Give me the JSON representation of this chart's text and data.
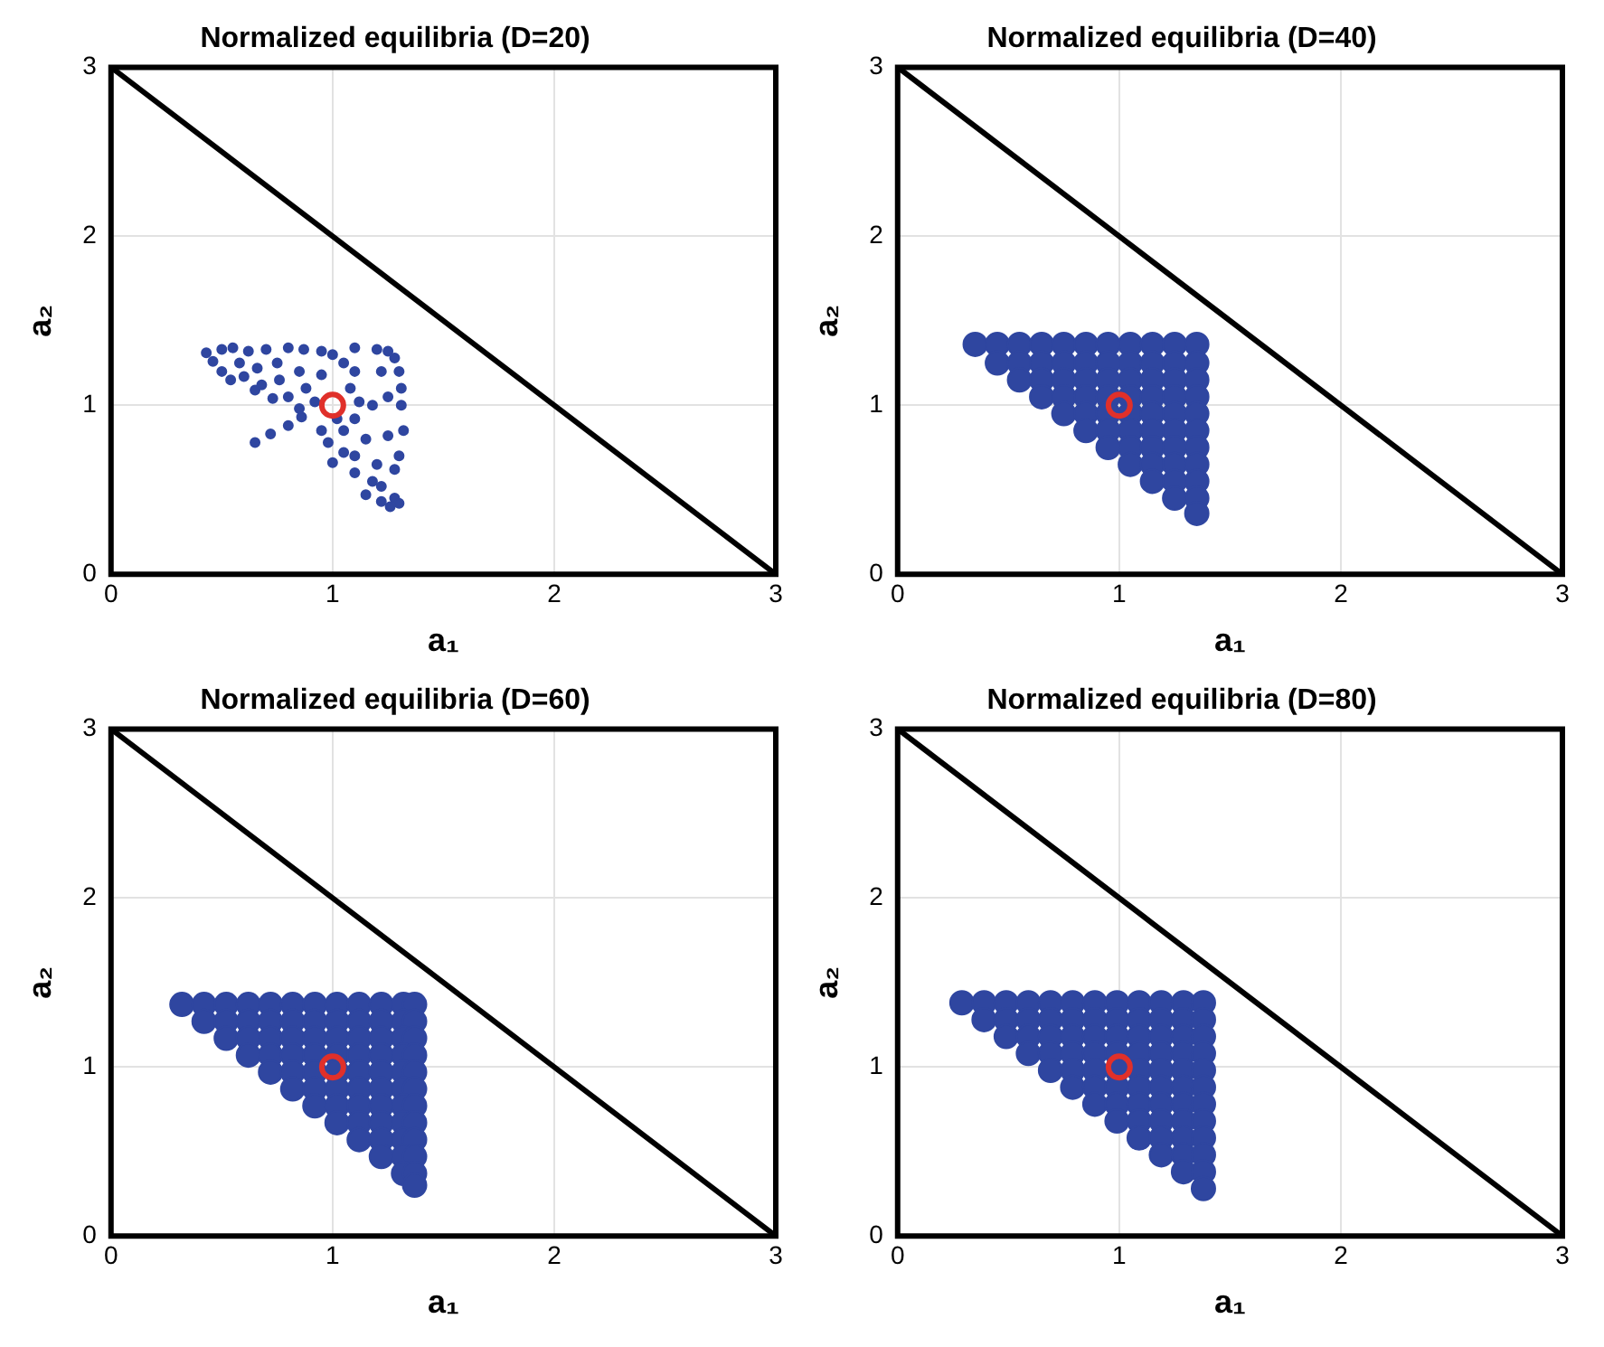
{
  "chart_data": [
    {
      "type": "scatter",
      "title": "Normalized equilibria (D=20)",
      "xlabel": "a₁",
      "ylabel": "a₂",
      "xlim": [
        0,
        3
      ],
      "ylim": [
        0,
        3
      ],
      "xticks": [
        0,
        1,
        2,
        3
      ],
      "yticks": [
        0,
        1,
        2,
        3
      ],
      "grid": true,
      "marker": "circle",
      "series": [
        {
          "type": "scatter",
          "color": "#2f46a0",
          "x": [
            0.43,
            0.5,
            0.55,
            0.46,
            0.5,
            0.54,
            0.62,
            0.58,
            0.6,
            0.65,
            0.7,
            0.66,
            0.68,
            0.73,
            0.8,
            0.75,
            0.76,
            0.8,
            0.85,
            0.87,
            0.85,
            0.88,
            0.92,
            0.65,
            0.72,
            0.8,
            0.86,
            0.95,
            1.0,
            0.95,
            1.05,
            1.1,
            1.08,
            1.12,
            1.02,
            0.95,
            0.98,
            1.05,
            1.1,
            1.1,
            1.2,
            1.25,
            1.28,
            1.3,
            1.31,
            1.31,
            1.22,
            1.25,
            1.18,
            1.32,
            1.25,
            1.15,
            1.05,
            1.0,
            1.1,
            1.2,
            1.28,
            1.3,
            1.1,
            1.18,
            1.22,
            1.28,
            1.3,
            1.22,
            1.15,
            1.26
          ],
          "values": [
            1.31,
            1.33,
            1.34,
            1.26,
            1.2,
            1.15,
            1.32,
            1.25,
            1.17,
            1.09,
            1.33,
            1.22,
            1.12,
            1.04,
            1.34,
            1.25,
            1.15,
            1.05,
            0.98,
            1.33,
            1.2,
            1.1,
            1.02,
            0.78,
            0.83,
            0.88,
            0.93,
            1.32,
            1.3,
            1.18,
            1.25,
            1.2,
            1.1,
            1.02,
            0.92,
            0.85,
            0.78,
            0.85,
            0.92,
            1.34,
            1.33,
            1.32,
            1.28,
            1.2,
            1.1,
            1.0,
            1.2,
            1.05,
            1.0,
            0.85,
            0.82,
            0.8,
            0.72,
            0.66,
            0.7,
            0.65,
            0.62,
            0.7,
            0.6,
            0.55,
            0.52,
            0.45,
            0.42,
            0.43,
            0.47,
            0.4
          ]
        },
        {
          "type": "scatter",
          "color": "#e0302a",
          "x": [
            1
          ],
          "values": [
            1
          ]
        },
        {
          "type": "line",
          "color": "#000000",
          "marker": "none",
          "x": [
            0,
            3
          ],
          "values": [
            3,
            0
          ]
        }
      ]
    },
    {
      "type": "scatter",
      "title": "Normalized equilibria (D=40)",
      "xlabel": "a₁",
      "ylabel": "a₂",
      "xlim": [
        0,
        3
      ],
      "ylim": [
        0,
        3
      ],
      "xticks": [
        0,
        1,
        2,
        3
      ],
      "yticks": [
        0,
        1,
        2,
        3
      ],
      "grid": true,
      "marker": "circle",
      "series": [
        {
          "type": "scatter",
          "color": "#2f46a0",
          "x": [
            0.35,
            0.45,
            0.55,
            0.65,
            0.75,
            0.85,
            0.95,
            1.05,
            1.15,
            1.25,
            1.35,
            0.45,
            0.55,
            0.65,
            0.75,
            0.85,
            0.95,
            1.05,
            1.15,
            1.25,
            1.35,
            0.55,
            0.65,
            0.75,
            0.85,
            0.95,
            1.05,
            1.15,
            1.25,
            1.35,
            0.65,
            0.75,
            0.85,
            0.95,
            1.05,
            1.15,
            1.25,
            1.35,
            0.75,
            0.85,
            0.95,
            1.05,
            1.15,
            1.25,
            1.35,
            0.85,
            0.95,
            1.05,
            1.15,
            1.25,
            1.35,
            0.95,
            1.05,
            1.15,
            1.25,
            1.35,
            1.05,
            1.15,
            1.25,
            1.35,
            1.15,
            1.25,
            1.35,
            1.25,
            1.35,
            1.35
          ],
          "values": [
            1.36,
            1.36,
            1.36,
            1.36,
            1.36,
            1.36,
            1.36,
            1.36,
            1.36,
            1.36,
            1.36,
            1.25,
            1.25,
            1.25,
            1.25,
            1.25,
            1.25,
            1.25,
            1.25,
            1.25,
            1.25,
            1.15,
            1.15,
            1.15,
            1.15,
            1.15,
            1.15,
            1.15,
            1.15,
            1.15,
            1.05,
            1.05,
            1.05,
            1.05,
            1.05,
            1.05,
            1.05,
            1.05,
            0.95,
            0.95,
            0.95,
            0.95,
            0.95,
            0.95,
            0.95,
            0.85,
            0.85,
            0.85,
            0.85,
            0.85,
            0.85,
            0.75,
            0.75,
            0.75,
            0.75,
            0.75,
            0.65,
            0.65,
            0.65,
            0.65,
            0.55,
            0.55,
            0.55,
            0.45,
            0.45,
            0.36
          ]
        },
        {
          "type": "scatter",
          "color": "#e0302a",
          "x": [
            1
          ],
          "values": [
            1
          ]
        },
        {
          "type": "line",
          "color": "#000000",
          "marker": "none",
          "x": [
            0,
            3
          ],
          "values": [
            3,
            0
          ]
        }
      ]
    },
    {
      "type": "scatter",
      "title": "Normalized equilibria (D=60)",
      "xlabel": "a₁",
      "ylabel": "a₂",
      "xlim": [
        0,
        3
      ],
      "ylim": [
        0,
        3
      ],
      "xticks": [
        0,
        1,
        2,
        3
      ],
      "yticks": [
        0,
        1,
        2,
        3
      ],
      "grid": true,
      "marker": "circle",
      "series": [
        {
          "type": "scatter",
          "color": "#2f46a0",
          "x": [
            0.32,
            0.42,
            0.52,
            0.62,
            0.72,
            0.82,
            0.92,
            1.02,
            1.12,
            1.22,
            1.32,
            1.37,
            0.42,
            0.52,
            0.62,
            0.72,
            0.82,
            0.92,
            1.02,
            1.12,
            1.22,
            1.32,
            1.37,
            0.52,
            0.62,
            0.72,
            0.82,
            0.92,
            1.02,
            1.12,
            1.22,
            1.32,
            1.37,
            0.62,
            0.72,
            0.82,
            0.92,
            1.02,
            1.12,
            1.22,
            1.32,
            1.37,
            0.72,
            0.82,
            0.92,
            1.02,
            1.12,
            1.22,
            1.32,
            1.37,
            0.82,
            0.92,
            1.02,
            1.12,
            1.22,
            1.32,
            1.37,
            0.92,
            1.02,
            1.12,
            1.22,
            1.32,
            1.37,
            1.02,
            1.12,
            1.22,
            1.32,
            1.37,
            1.12,
            1.22,
            1.32,
            1.37,
            1.22,
            1.32,
            1.37,
            1.32,
            1.37,
            1.37
          ],
          "values": [
            1.37,
            1.37,
            1.37,
            1.37,
            1.37,
            1.37,
            1.37,
            1.37,
            1.37,
            1.37,
            1.37,
            1.37,
            1.27,
            1.27,
            1.27,
            1.27,
            1.27,
            1.27,
            1.27,
            1.27,
            1.27,
            1.27,
            1.27,
            1.17,
            1.17,
            1.17,
            1.17,
            1.17,
            1.17,
            1.17,
            1.17,
            1.17,
            1.17,
            1.07,
            1.07,
            1.07,
            1.07,
            1.07,
            1.07,
            1.07,
            1.07,
            1.07,
            0.97,
            0.97,
            0.97,
            0.97,
            0.97,
            0.97,
            0.97,
            0.97,
            0.87,
            0.87,
            0.87,
            0.87,
            0.87,
            0.87,
            0.87,
            0.77,
            0.77,
            0.77,
            0.77,
            0.77,
            0.77,
            0.67,
            0.67,
            0.67,
            0.67,
            0.67,
            0.57,
            0.57,
            0.57,
            0.57,
            0.47,
            0.47,
            0.47,
            0.37,
            0.37,
            0.3
          ]
        },
        {
          "type": "scatter",
          "color": "#e0302a",
          "x": [
            1
          ],
          "values": [
            1
          ]
        },
        {
          "type": "line",
          "color": "#000000",
          "marker": "none",
          "x": [
            0,
            3
          ],
          "values": [
            3,
            0
          ]
        }
      ]
    },
    {
      "type": "scatter",
      "title": "Normalized equilibria (D=80)",
      "xlabel": "a₁",
      "ylabel": "a₂",
      "xlim": [
        0,
        3
      ],
      "ylim": [
        0,
        3
      ],
      "xticks": [
        0,
        1,
        2,
        3
      ],
      "yticks": [
        0,
        1,
        2,
        3
      ],
      "grid": true,
      "marker": "circle",
      "series": [
        {
          "type": "scatter",
          "color": "#2f46a0",
          "x": [
            0.29,
            0.39,
            0.49,
            0.59,
            0.69,
            0.79,
            0.89,
            0.99,
            1.09,
            1.19,
            1.29,
            1.38,
            0.39,
            0.49,
            0.59,
            0.69,
            0.79,
            0.89,
            0.99,
            1.09,
            1.19,
            1.29,
            1.38,
            0.49,
            0.59,
            0.69,
            0.79,
            0.89,
            0.99,
            1.09,
            1.19,
            1.29,
            1.38,
            0.59,
            0.69,
            0.79,
            0.89,
            0.99,
            1.09,
            1.19,
            1.29,
            1.38,
            0.69,
            0.79,
            0.89,
            0.99,
            1.09,
            1.19,
            1.29,
            1.38,
            0.79,
            0.89,
            0.99,
            1.09,
            1.19,
            1.29,
            1.38,
            0.89,
            0.99,
            1.09,
            1.19,
            1.29,
            1.38,
            0.99,
            1.09,
            1.19,
            1.29,
            1.38,
            1.09,
            1.19,
            1.29,
            1.38,
            1.19,
            1.29,
            1.38,
            1.29,
            1.38,
            1.38
          ],
          "values": [
            1.38,
            1.38,
            1.38,
            1.38,
            1.38,
            1.38,
            1.38,
            1.38,
            1.38,
            1.38,
            1.38,
            1.38,
            1.28,
            1.28,
            1.28,
            1.28,
            1.28,
            1.28,
            1.28,
            1.28,
            1.28,
            1.28,
            1.28,
            1.18,
            1.18,
            1.18,
            1.18,
            1.18,
            1.18,
            1.18,
            1.18,
            1.18,
            1.18,
            1.08,
            1.08,
            1.08,
            1.08,
            1.08,
            1.08,
            1.08,
            1.08,
            1.08,
            0.98,
            0.98,
            0.98,
            0.98,
            0.98,
            0.98,
            0.98,
            0.98,
            0.88,
            0.88,
            0.88,
            0.88,
            0.88,
            0.88,
            0.88,
            0.78,
            0.78,
            0.78,
            0.78,
            0.78,
            0.78,
            0.68,
            0.68,
            0.68,
            0.68,
            0.68,
            0.58,
            0.58,
            0.58,
            0.58,
            0.48,
            0.48,
            0.48,
            0.38,
            0.38,
            0.28
          ]
        },
        {
          "type": "scatter",
          "color": "#e0302a",
          "x": [
            1
          ],
          "values": [
            1
          ]
        },
        {
          "type": "line",
          "color": "#000000",
          "marker": "none",
          "x": [
            0,
            3
          ],
          "values": [
            3,
            0
          ]
        }
      ]
    }
  ]
}
